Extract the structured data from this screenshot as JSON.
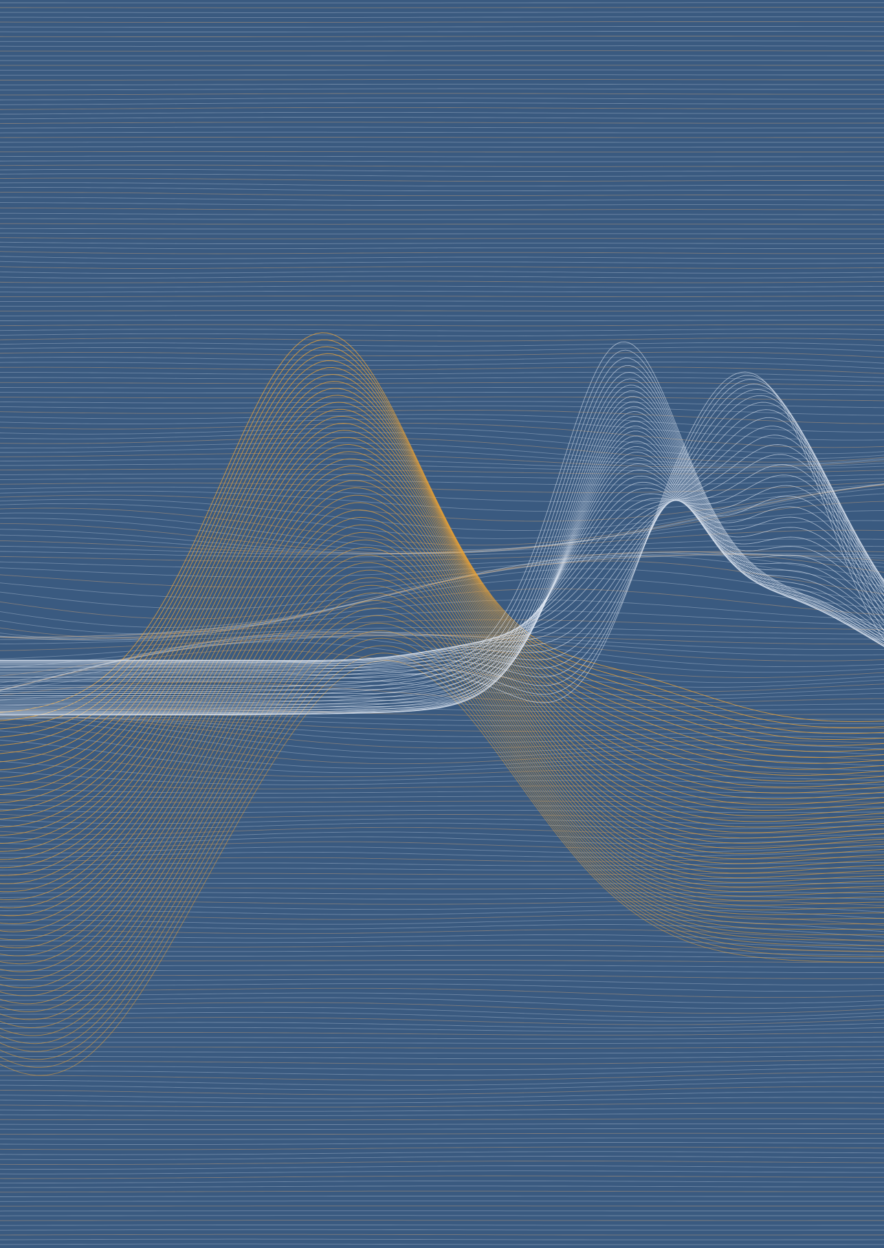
{
  "artwork": {
    "kind": "abstract wave-line illustration",
    "colors": {
      "background": "#3a5a80",
      "background_line_light": "#c9d4e3",
      "background_line_warm": "#d7a878",
      "orange_wave": "#f0a432",
      "white_wave": "#e8eef8"
    },
    "layers": [
      {
        "name": "horizontal-line-field",
        "color_keys": [
          "background_line_light",
          "background_line_warm"
        ]
      },
      {
        "name": "orange-wave-bundle",
        "color_key": "orange_wave"
      },
      {
        "name": "white-wave-bundle",
        "color_key": "white_wave"
      }
    ]
  }
}
